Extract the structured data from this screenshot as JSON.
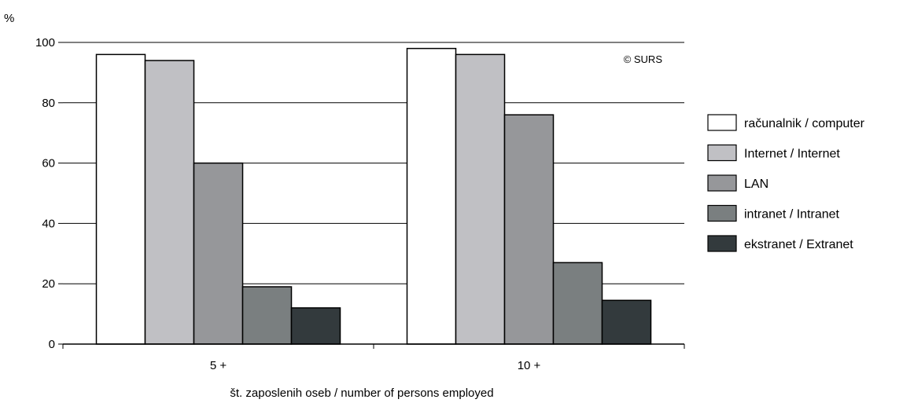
{
  "chart_data": {
    "type": "bar",
    "ylabel": "%",
    "xlabel": "št. zaposlenih oseb / number of persons employed",
    "copyright": "© SURS",
    "categories": [
      "5 +",
      "10 +"
    ],
    "ylim": [
      0,
      100
    ],
    "yticks": [
      0,
      20,
      40,
      60,
      80,
      100
    ],
    "grid": true,
    "legend_position": "right",
    "series": [
      {
        "name": "računalnik / computer",
        "values": [
          96,
          98
        ],
        "color": "#ffffff"
      },
      {
        "name": "Internet / Internet",
        "values": [
          94,
          96
        ],
        "color": "#c0c0c4"
      },
      {
        "name": "LAN",
        "values": [
          60,
          76
        ],
        "color": "#96979a"
      },
      {
        "name": "intranet / Intranet",
        "values": [
          19,
          27
        ],
        "color": "#7a7f80"
      },
      {
        "name": "ekstranet / Extranet",
        "values": [
          12,
          14.5
        ],
        "color": "#333a3d"
      }
    ]
  }
}
